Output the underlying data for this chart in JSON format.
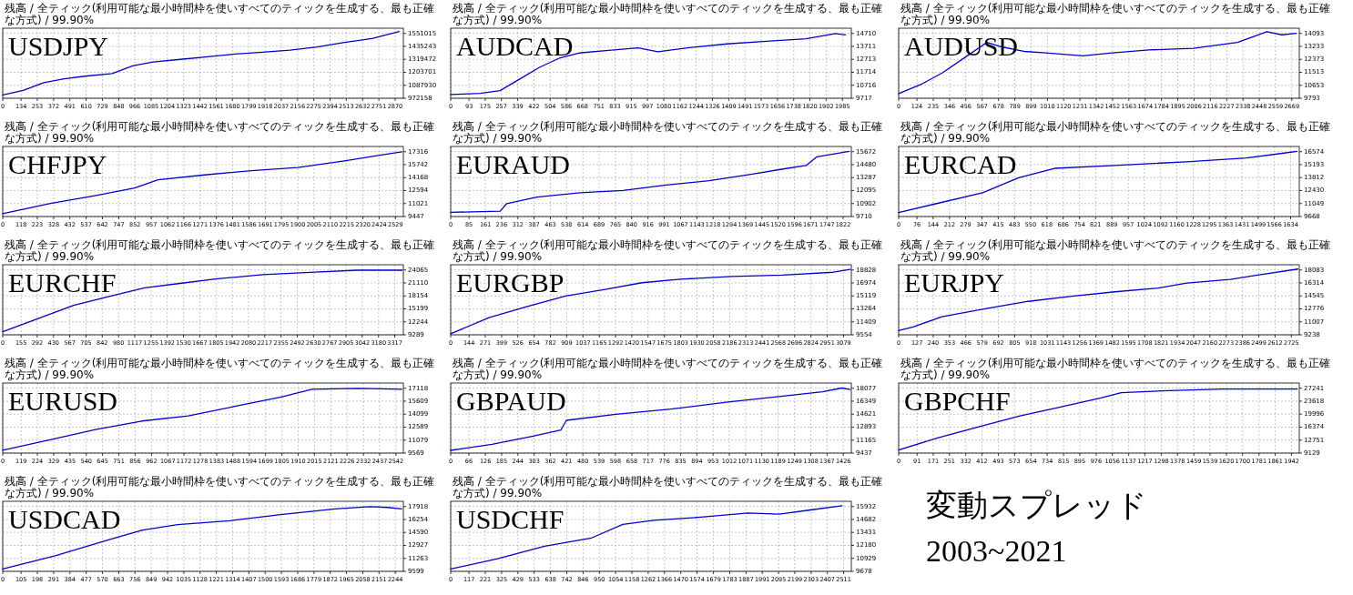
{
  "chart_data": [
    {
      "type": "line",
      "title": "USDJPY",
      "subtitle": "残高 / 全ティック(利用可能な最小時間枠を使いすべてのティックを生成する、最も正確な方式) / 99.90%",
      "grid": true,
      "xlim": [
        0,
        2930
      ],
      "ylim": [
        972158,
        1597000
      ],
      "xticks": [
        0,
        134,
        253,
        372,
        491,
        610,
        729,
        848,
        966,
        1085,
        1204,
        1323,
        1442,
        1561,
        1680,
        1799,
        1918,
        2037,
        2156,
        2275,
        2394,
        2513,
        2632,
        2751,
        2870
      ],
      "yticks": [
        972158,
        1087930,
        1203701,
        1319472,
        1435243,
        1551015
      ],
      "x": [
        0,
        150,
        300,
        450,
        600,
        800,
        950,
        1100,
        1300,
        1500,
        1700,
        1900,
        2100,
        2300,
        2500,
        2700,
        2900
      ],
      "series": [
        {
          "color": "#0000cc",
          "values": [
            1001000,
            1042000,
            1111000,
            1146000,
            1169000,
            1192000,
            1262000,
            1296000,
            1319000,
            1343000,
            1366000,
            1383000,
            1401000,
            1429000,
            1470000,
            1505000,
            1568000
          ]
        }
      ]
    },
    {
      "type": "line",
      "title": "AUDCAD",
      "subtitle": "残高 / 全ティック(利用可能な最小時間枠を使いすべてのティックを生成する、最も正確な方式) / 99.90%",
      "grid": true,
      "xlim": [
        0,
        2030
      ],
      "ylim": [
        9717,
        15109
      ],
      "xticks": [
        0,
        93,
        175,
        257,
        339,
        422,
        504,
        586,
        668,
        751,
        833,
        915,
        997,
        1080,
        1162,
        1244,
        1326,
        1409,
        1491,
        1573,
        1656,
        1738,
        1820,
        1902,
        1985
      ],
      "yticks": [
        9717,
        10716,
        11714,
        12713,
        13711,
        14710
      ],
      "x": [
        0,
        150,
        250,
        350,
        450,
        550,
        650,
        800,
        950,
        1050,
        1200,
        1400,
        1600,
        1800,
        1950,
        2000
      ],
      "series": [
        {
          "color": "#0000cc",
          "values": [
            10000,
            10100,
            10300,
            11200,
            12100,
            12800,
            13200,
            13400,
            13600,
            13300,
            13600,
            13900,
            14100,
            14300,
            14700,
            14600
          ]
        }
      ]
    },
    {
      "type": "line",
      "title": "AUDUSD",
      "subtitle": "残高 / 全ティック(利用可能な最小時間枠を使いすべてのティックを生成する、最も正確な方式) / 99.90%",
      "grid": true,
      "xlim": [
        0,
        2720
      ],
      "ylim": [
        9793,
        14437
      ],
      "xticks": [
        0,
        124,
        235,
        346,
        456,
        567,
        678,
        789,
        899,
        1010,
        1120,
        1231,
        1342,
        1452,
        1563,
        1674,
        1784,
        1895,
        2006,
        2116,
        2227,
        2338,
        2448,
        2559,
        2669
      ],
      "yticks": [
        9793,
        10653,
        11513,
        12373,
        13233,
        14093
      ],
      "x": [
        0,
        150,
        300,
        450,
        600,
        700,
        850,
        1000,
        1250,
        1450,
        1700,
        2000,
        2300,
        2500,
        2600,
        2700
      ],
      "series": [
        {
          "color": "#0000cc",
          "values": [
            10100,
            10700,
            11500,
            12500,
            13500,
            13200,
            12900,
            12800,
            12600,
            12800,
            13000,
            13100,
            13500,
            14200,
            14000,
            14100
          ]
        }
      ]
    },
    {
      "type": "line",
      "title": "CHFJPY",
      "subtitle": "残高 / 全ティック(利用可能な最小時間枠を使いすべてのティックを生成する、最も正確な方式) / 99.90%",
      "grid": true,
      "xlim": [
        0,
        2580
      ],
      "ylim": [
        9447,
        17947
      ],
      "xticks": [
        0,
        118,
        223,
        328,
        432,
        537,
        642,
        747,
        852,
        957,
        1062,
        1166,
        1271,
        1376,
        1481,
        1586,
        1691,
        1795,
        1900,
        2005,
        2110,
        2215,
        2320,
        2424,
        2529
      ],
      "yticks": [
        9447,
        11021,
        12594,
        14168,
        15742,
        17316
      ],
      "x": [
        0,
        300,
        600,
        850,
        1000,
        1300,
        1600,
        1900,
        2200,
        2400,
        2570
      ],
      "series": [
        {
          "color": "#0000cc",
          "values": [
            9800,
            11000,
            12000,
            12900,
            13900,
            14500,
            15000,
            15400,
            16200,
            16800,
            17300
          ]
        }
      ]
    },
    {
      "type": "line",
      "title": "EURAUD",
      "subtitle": "残高 / 全ティック(利用可能な最小時間枠を使いすべてのティックを生成する、最も正確な方式) / 99.90%",
      "grid": true,
      "xlim": [
        0,
        1860
      ],
      "ylim": [
        9710,
        16149
      ],
      "xticks": [
        0,
        85,
        161,
        236,
        312,
        387,
        463,
        538,
        614,
        689,
        765,
        840,
        916,
        991,
        1067,
        1143,
        1218,
        1294,
        1369,
        1445,
        1520,
        1596,
        1671,
        1747,
        1822
      ],
      "yticks": [
        9710,
        10902,
        12095,
        13287,
        14480,
        15672
      ],
      "x": [
        0,
        230,
        260,
        400,
        600,
        800,
        1000,
        1200,
        1400,
        1550,
        1650,
        1700,
        1850
      ],
      "series": [
        {
          "color": "#0000cc",
          "values": [
            10100,
            10200,
            10900,
            11500,
            11900,
            12100,
            12600,
            13000,
            13600,
            14100,
            14400,
            15200,
            15700
          ]
        }
      ]
    },
    {
      "type": "line",
      "title": "EURCAD",
      "subtitle": "残高 / 全ティック(利用可能な最小時間枠を使いすべてのティックを生成する、最も正確な方式) / 99.90%",
      "grid": true,
      "xlim": [
        0,
        1670
      ],
      "ylim": [
        9668,
        17125
      ],
      "xticks": [
        0,
        76,
        144,
        212,
        279,
        347,
        415,
        483,
        550,
        618,
        686,
        754,
        821,
        889,
        957,
        1024,
        1092,
        1160,
        1228,
        1295,
        1363,
        1431,
        1499,
        1566,
        1634
      ],
      "yticks": [
        9668,
        11049,
        12430,
        13812,
        15193,
        16574
      ],
      "x": [
        0,
        150,
        350,
        500,
        650,
        900,
        1200,
        1450,
        1600,
        1660
      ],
      "series": [
        {
          "color": "#0000cc",
          "values": [
            10100,
            11000,
            12200,
            13800,
            14800,
            15100,
            15500,
            15900,
            16400,
            16600
          ]
        }
      ]
    },
    {
      "type": "line",
      "title": "EURCHF",
      "subtitle": "残高 / 全ティック(利用可能な最小時間枠を使いすべてのティックを生成する、最も正確な方式) / 99.90%",
      "grid": true,
      "xlim": [
        0,
        3390
      ],
      "ylim": [
        9289,
        25246
      ],
      "xticks": [
        0,
        155,
        292,
        430,
        567,
        705,
        842,
        980,
        1117,
        1255,
        1392,
        1530,
        1667,
        1805,
        1942,
        2080,
        2217,
        2355,
        2492,
        2630,
        2767,
        2905,
        3042,
        3180,
        3317
      ],
      "yticks": [
        9289,
        12244,
        15199,
        18154,
        21110,
        24065
      ],
      "x": [
        0,
        300,
        600,
        900,
        1200,
        1500,
        1800,
        2200,
        2600,
        3000,
        3380
      ],
      "series": [
        {
          "color": "#0000cc",
          "values": [
            10000,
            13000,
            16000,
            18000,
            20000,
            21000,
            22000,
            23000,
            23500,
            24000,
            24000
          ]
        }
      ]
    },
    {
      "type": "line",
      "title": "EURGBP",
      "subtitle": "残高 / 全ティック(利用可能な最小時間枠を使いすべてのティックを生成する、最も正確な方式) / 99.90%",
      "grid": true,
      "xlim": [
        0,
        3140
      ],
      "ylim": [
        9554,
        19571
      ],
      "xticks": [
        0,
        144,
        271,
        399,
        526,
        654,
        782,
        909,
        1037,
        1165,
        1292,
        1420,
        1547,
        1675,
        1803,
        1930,
        2058,
        2186,
        2313,
        2441,
        2568,
        2696,
        2824,
        2951,
        3079
      ],
      "yticks": [
        9554,
        11409,
        13264,
        15119,
        16974,
        18828
      ],
      "x": [
        0,
        300,
        600,
        900,
        1200,
        1500,
        1800,
        2200,
        2600,
        3000,
        3130
      ],
      "series": [
        {
          "color": "#0000cc",
          "values": [
            9700,
            12000,
            13600,
            15100,
            16000,
            17000,
            17500,
            17900,
            18100,
            18500,
            18900
          ]
        }
      ]
    },
    {
      "type": "line",
      "title": "EURJPY",
      "subtitle": "残高 / 全ティック(利用可能な最小時間枠を使いすべてのティックを生成する、最も正確な方式) / 99.90%",
      "grid": true,
      "xlim": [
        0,
        2780
      ],
      "ylim": [
        9238,
        18791
      ],
      "xticks": [
        0,
        127,
        240,
        353,
        466,
        579,
        692,
        805,
        918,
        1031,
        1143,
        1256,
        1369,
        1482,
        1595,
        1708,
        1821,
        1934,
        2047,
        2160,
        2273,
        2386,
        2499,
        2612,
        2725
      ],
      "yticks": [
        9238,
        11007,
        12776,
        14545,
        16314,
        18083
      ],
      "x": [
        0,
        100,
        300,
        600,
        900,
        1200,
        1500,
        1800,
        2000,
        2300,
        2500,
        2770
      ],
      "series": [
        {
          "color": "#0000cc",
          "values": [
            9800,
            10300,
            11700,
            12800,
            13800,
            14500,
            15100,
            15600,
            16300,
            16800,
            17400,
            18200
          ]
        }
      ]
    },
    {
      "type": "line",
      "title": "EURUSD",
      "subtitle": "残高 / 全ティック(利用可能な最小時間枠を使いすべてのティックを生成する、最も正確な方式) / 99.90%",
      "grid": true,
      "xlim": [
        0,
        2590
      ],
      "ylim": [
        9569,
        17723
      ],
      "xticks": [
        0,
        119,
        224,
        329,
        435,
        540,
        645,
        751,
        856,
        962,
        1067,
        1172,
        1278,
        1383,
        1488,
        1594,
        1699,
        1805,
        1910,
        2015,
        2121,
        2226,
        2332,
        2437,
        2542
      ],
      "yticks": [
        9569,
        11079,
        12589,
        14099,
        15609,
        17118
      ],
      "x": [
        0,
        300,
        600,
        900,
        1200,
        1500,
        1800,
        2000,
        2300,
        2580
      ],
      "series": [
        {
          "color": "#0000cc",
          "values": [
            9900,
            11100,
            12300,
            13300,
            13900,
            15000,
            16100,
            17000,
            17100,
            17000
          ]
        }
      ]
    },
    {
      "type": "line",
      "title": "GBPAUD",
      "subtitle": "残高 / 全ティック(利用可能な最小時間枠を使いすべてのティックを生成する、最も正確な方式) / 99.90%",
      "grid": true,
      "xlim": [
        0,
        1455
      ],
      "ylim": [
        9437,
        18768
      ],
      "xticks": [
        0,
        66,
        126,
        185,
        244,
        303,
        362,
        421,
        480,
        539,
        598,
        658,
        717,
        776,
        835,
        894,
        953,
        1012,
        1071,
        1130,
        1189,
        1249,
        1308,
        1367,
        1426
      ],
      "yticks": [
        9437,
        11165,
        12893,
        14621,
        16349,
        18077
      ],
      "x": [
        0,
        150,
        300,
        400,
        420,
        600,
        800,
        1000,
        1200,
        1350,
        1420,
        1450
      ],
      "series": [
        {
          "color": "#0000cc",
          "values": [
            9800,
            10600,
            11700,
            12500,
            13800,
            14600,
            15300,
            16200,
            17000,
            17600,
            18100,
            17900
          ]
        }
      ]
    },
    {
      "type": "line",
      "title": "GBPCHF",
      "subtitle": "残高 / 全ティック(利用可能な最小時間枠を使いすべてのティックを生成する、最も正確な方式) / 99.90%",
      "grid": true,
      "xlim": [
        0,
        1980
      ],
      "ylim": [
        9129,
        28688
      ],
      "xticks": [
        0,
        91,
        171,
        251,
        332,
        412,
        493,
        573,
        654,
        734,
        815,
        895,
        976,
        1056,
        1137,
        1217,
        1298,
        1378,
        1459,
        1539,
        1620,
        1700,
        1781,
        1861,
        1942
      ],
      "yticks": [
        9129,
        12751,
        16374,
        19996,
        23618,
        27241
      ],
      "x": [
        0,
        200,
        400,
        600,
        800,
        1000,
        1100,
        1300,
        1600,
        1800,
        1970
      ],
      "series": [
        {
          "color": "#0000cc",
          "values": [
            10000,
            13500,
            16500,
            19500,
            22000,
            24500,
            26000,
            26500,
            27000,
            27000,
            27000
          ]
        }
      ]
    },
    {
      "type": "line",
      "title": "USDCAD",
      "subtitle": "残高 / 全ティック(利用可能な最小時間枠を使いすべてのティックを生成する、最も正確な方式) / 99.90%",
      "grid": true,
      "xlim": [
        0,
        2290
      ],
      "ylim": [
        9599,
        18585
      ],
      "xticks": [
        0,
        105,
        198,
        291,
        384,
        477,
        570,
        663,
        756,
        849,
        942,
        1035,
        1128,
        1221,
        1314,
        1407,
        1500,
        1593,
        1686,
        1779,
        1872,
        1965,
        2058,
        2151,
        2244
      ],
      "yticks": [
        9599,
        11263,
        12927,
        14590,
        16254,
        17918
      ],
      "x": [
        0,
        300,
        600,
        800,
        1000,
        1300,
        1600,
        1900,
        2100,
        2200,
        2280
      ],
      "series": [
        {
          "color": "#0000cc",
          "values": [
            9900,
            11600,
            13600,
            14900,
            15600,
            16100,
            16900,
            17600,
            17900,
            17800,
            17600
          ]
        }
      ]
    },
    {
      "type": "line",
      "title": "USDCHF",
      "subtitle": "残高 / 全ティック(利用可能な最小時間枠を使いすべてのティックを生成する、最も正確な方式) / 99.90%",
      "grid": true,
      "xlim": [
        0,
        2560
      ],
      "ylim": [
        9678,
        16433
      ],
      "xticks": [
        0,
        117,
        221,
        325,
        429,
        533,
        638,
        742,
        846,
        950,
        1054,
        1158,
        1262,
        1366,
        1470,
        1574,
        1679,
        1783,
        1887,
        1991,
        2095,
        2199,
        2303,
        2407,
        2511
      ],
      "yticks": [
        9678,
        10929,
        12180,
        13431,
        14682,
        15932
      ],
      "x": [
        0,
        300,
        600,
        900,
        1100,
        1300,
        1600,
        1900,
        2100,
        2300,
        2500
      ],
      "series": [
        {
          "color": "#0000cc",
          "values": [
            9900,
            10900,
            12100,
            12900,
            14200,
            14600,
            14900,
            15300,
            15200,
            15600,
            16000
          ]
        }
      ]
    },
    {
      "type": "other",
      "annotations": [
        "変動スプレッド",
        "2003~2021"
      ]
    }
  ]
}
